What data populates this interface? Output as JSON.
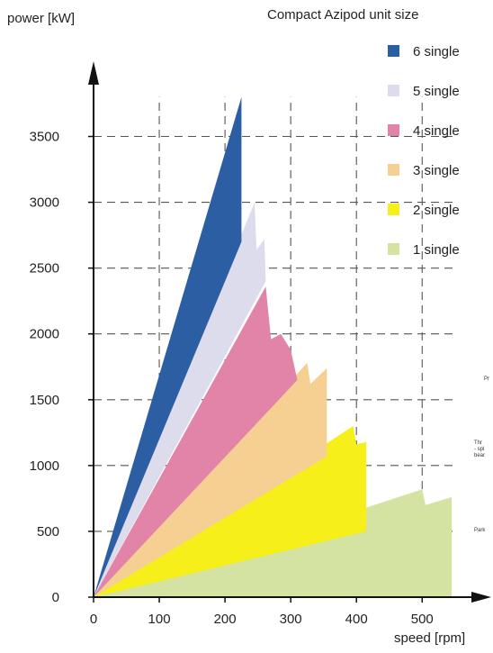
{
  "chart_data": {
    "type": "area",
    "title": "Compact Azipod unit size",
    "ylabel": "power [kW]",
    "xlabel": "speed [rpm]",
    "xlim": [
      0,
      550
    ],
    "ylim": [
      0,
      3800
    ],
    "x_ticks": [
      0,
      100,
      200,
      300,
      400,
      500
    ],
    "y_ticks": [
      0,
      500,
      1000,
      1500,
      2000,
      2500,
      3000,
      3500
    ],
    "grid": true,
    "legend_position": "top-right",
    "series": [
      {
        "name": "1 single",
        "color": "#d4e3a2",
        "points": [
          [
            0,
            0
          ],
          [
            500,
            820
          ],
          [
            505,
            700
          ],
          [
            545,
            760
          ],
          [
            545,
            0
          ]
        ]
      },
      {
        "name": "2 single",
        "color": "#f6ef1a",
        "points": [
          [
            0,
            0
          ],
          [
            395,
            1300
          ],
          [
            400,
            1160
          ],
          [
            415,
            1180
          ],
          [
            415,
            500
          ],
          [
            0,
            0
          ]
        ]
      },
      {
        "name": "3 single",
        "color": "#f6cf92",
        "points": [
          [
            0,
            0
          ],
          [
            325,
            1780
          ],
          [
            330,
            1620
          ],
          [
            355,
            1740
          ],
          [
            355,
            1070
          ],
          [
            0,
            0
          ]
        ]
      },
      {
        "name": "4 single",
        "color": "#e184a8",
        "points": [
          [
            0,
            0
          ],
          [
            262,
            2360
          ],
          [
            270,
            1960
          ],
          [
            285,
            2000
          ],
          [
            300,
            1880
          ],
          [
            310,
            1650
          ],
          [
            0,
            0
          ]
        ]
      },
      {
        "name": "5 single",
        "color": "#dcdcec",
        "points": [
          [
            0,
            0
          ],
          [
            245,
            3000
          ],
          [
            248,
            2640
          ],
          [
            260,
            2720
          ],
          [
            262,
            2400
          ],
          [
            0,
            0
          ]
        ]
      },
      {
        "name": "6 single",
        "color": "#2c5ea4",
        "points": [
          [
            0,
            0
          ],
          [
            225,
            3800
          ],
          [
            225,
            2700
          ],
          [
            0,
            0
          ]
        ]
      }
    ]
  },
  "edge_notes": [
    "Pr",
    "Thr",
    "- spl",
    "bear",
    "Park"
  ]
}
